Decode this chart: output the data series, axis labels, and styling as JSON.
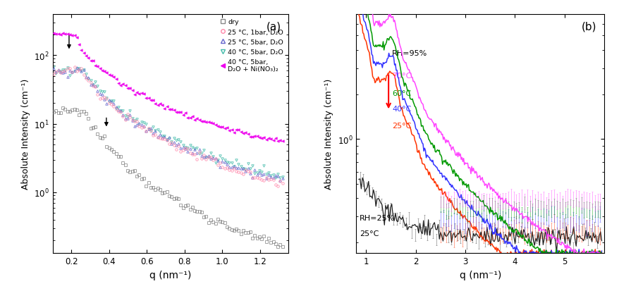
{
  "panel_a": {
    "xlabel": "q (nm⁻¹)",
    "ylabel": "Absolute Intensity (cm⁻¹)",
    "xlim": [
      0.1,
      1.35
    ],
    "ylim": [
      0.13,
      400
    ],
    "series": [
      {
        "label": "dry",
        "color": "#888888",
        "marker": "s",
        "filled": false
      },
      {
        "label": "25 °C, 1bar, D₂O",
        "color": "#ff88aa",
        "marker": "o",
        "filled": false
      },
      {
        "label": "25 °C, 5bar, D₂O",
        "color": "#6666cc",
        "marker": "^",
        "filled": false
      },
      {
        "label": "40 °C, 5bar, D₂O",
        "color": "#44bbaa",
        "marker": "v",
        "filled": false
      },
      {
        "label": "40 °C, 5bar,\nD₂O + Ni(NO₃)₂",
        "color": "#ee00ee",
        "marker": "<",
        "filled": true
      }
    ]
  },
  "panel_b": {
    "xlabel": "q (nm⁻¹)",
    "ylabel": "Absolute Intensity (cm⁻¹)",
    "xlim": [
      0.8,
      5.8
    ],
    "ylim": [
      0.17,
      7
    ],
    "colors_rh95": [
      "#ff3300",
      "#3333ff",
      "#009900",
      "#ff44ff"
    ],
    "color_rh25": "#222222",
    "labels_rh95": [
      "25°C",
      "40°C",
      "60°C",
      "70°C"
    ]
  }
}
